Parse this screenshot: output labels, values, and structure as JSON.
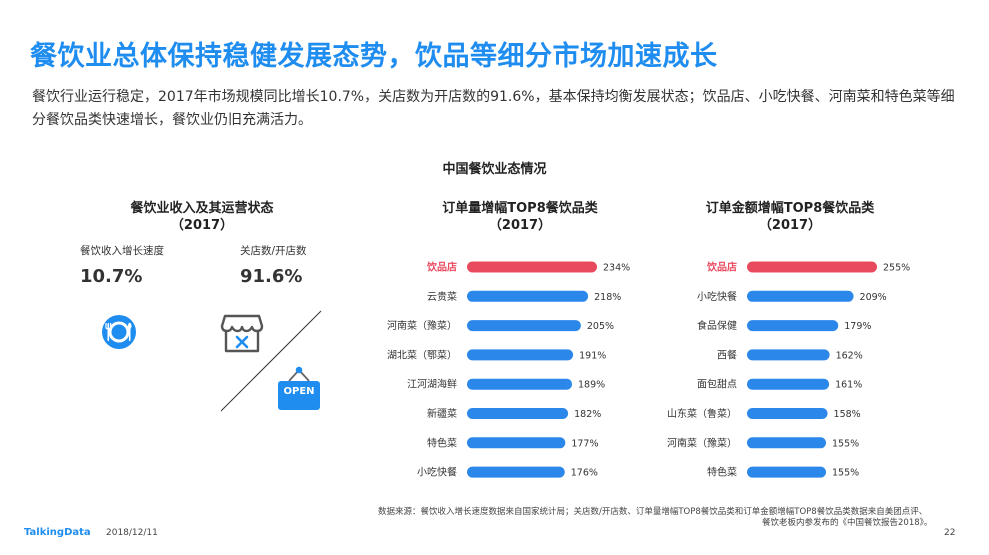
{
  "title": "餐饮业总体保持稳健发展态势，饮品等细分市场加速成长",
  "subtitle": "餐饮行业运行稳定，2017年市场规模同比增长10.7%，关店数为开店数的91.6%，基本保持均衡发展状态；饮品店、小吃快餐、河南菜和特色菜等细分餐饮品类快速增长，餐饮业仍旧充满活力。",
  "section_title": "中国餐饮业态情况",
  "left_panel": {
    "title": "餐饮业收入及其运营状态",
    "year": "（2017）",
    "metric1_label": "餐饮收入增长速度",
    "metric1_value": "10.7%",
    "metric2_label": "关店数/开店数",
    "metric2_value": "91.6%",
    "open_sign": "OPEN"
  },
  "colors": {
    "accent": "#1f8df0",
    "bar": "#2b87ea",
    "highlight": "#ea4a5e"
  },
  "chart_data": [
    {
      "type": "bar",
      "orientation": "horizontal",
      "title": "订单量增幅TOP8餐饮品类",
      "subtitle": "（2017）",
      "categories": [
        "饮品店",
        "云贵菜",
        "河南菜（豫菜）",
        "湖北菜（鄂菜）",
        "江河湖海鲜",
        "新疆菜",
        "特色菜",
        "小吃快餐"
      ],
      "values": [
        234,
        218,
        205,
        191,
        189,
        182,
        177,
        176
      ],
      "value_labels": [
        "234%",
        "218%",
        "205%",
        "191%",
        "189%",
        "182%",
        "177%",
        "176%"
      ],
      "unit": "%",
      "highlight_index": 0
    },
    {
      "type": "bar",
      "orientation": "horizontal",
      "title": "订单金额增幅TOP8餐饮品类",
      "subtitle": "（2017）",
      "categories": [
        "饮品店",
        "小吃快餐",
        "食品保健",
        "西餐",
        "面包甜点",
        "山东菜（鲁菜）",
        "河南菜（豫菜）",
        "特色菜"
      ],
      "values": [
        255,
        209,
        179,
        162,
        161,
        158,
        155,
        155
      ],
      "value_labels": [
        "255%",
        "209%",
        "179%",
        "162%",
        "161%",
        "158%",
        "155%",
        "155%"
      ],
      "unit": "%",
      "highlight_index": 0
    }
  ],
  "footer": {
    "source_line1": "数据来源：餐饮收入增长速度数据来自国家统计局；关店数/开店数、订单量增幅TOP8餐饮品类和订单金额增幅TOP8餐饮品类数据来自美团点评、",
    "source_line2": "餐饮老板内参发布的《中国餐饮报告2018》。",
    "brand": "TalkingData",
    "date": "2018/12/11",
    "page": "22"
  }
}
